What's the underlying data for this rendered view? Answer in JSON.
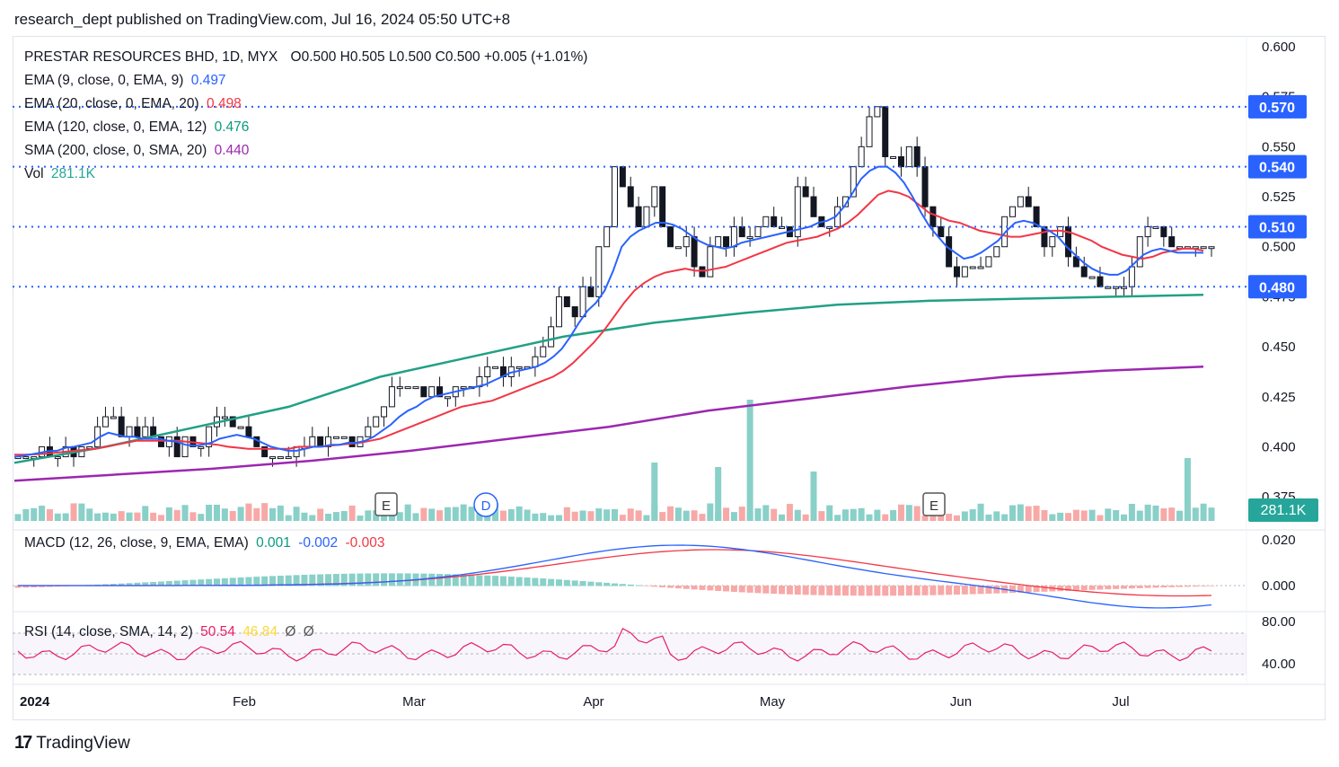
{
  "header": {
    "publisher_line": "research_dept published on TradingView.com, Jul 16, 2024 05:50 UTC+8"
  },
  "footer": {
    "brand": "TradingView"
  },
  "legend": {
    "title": "PRESTAR RESOURCES BHD, 1D, MYX",
    "ohlc": "O0.500  H0.505  L0.500  C0.500  +0.005 (+1.01%)",
    "ema9": {
      "label": "EMA (9, close, 0, EMA, 9)",
      "value": "0.497",
      "color": "#2962ff"
    },
    "ema20": {
      "label": "EMA (20, close, 0, EMA, 20)",
      "value": "0.498",
      "color": "#f23645"
    },
    "ema120": {
      "label": "EMA (120, close, 0, EMA, 12)",
      "value": "0.476",
      "color": "#089981"
    },
    "sma200": {
      "label": "SMA (200, close, 0, SMA, 20)",
      "value": "0.440",
      "color": "#9c27b0"
    },
    "vol": {
      "label": "Vol",
      "value": "281.1K",
      "color": "#26a69a"
    },
    "macd": {
      "label": "MACD (12, 26, close, 9, EMA, EMA)",
      "hist": "0.001",
      "macd": "-0.002",
      "signal": "-0.003"
    },
    "rsi": {
      "label": "RSI (14, close, SMA, 14, 2)",
      "rsi": "50.54",
      "sma": "46.84",
      "d1": "Ø",
      "d2": "Ø"
    }
  },
  "events": [
    {
      "label": "E",
      "date": "Feb 19"
    },
    {
      "label": "D",
      "date": "Mar 12"
    },
    {
      "label": "E",
      "date": "May 29"
    }
  ],
  "colors": {
    "up": "#ffffff",
    "down": "#131722",
    "vol_up": "#89d0c8",
    "vol_down": "#f7a9a7",
    "level": "#2962ff",
    "rsi": "#e91e63"
  },
  "chart_data": {
    "type": "candlestick",
    "symbol": "PRESTAR RESOURCES BHD",
    "price_axis": {
      "ticks": [
        "0.600",
        "0.575",
        "0.550",
        "0.525",
        "0.500",
        "0.475",
        "0.450",
        "0.425",
        "0.400",
        "0.375"
      ],
      "ylim": [
        0.37,
        0.605
      ]
    },
    "time_axis": {
      "ticks": [
        "2024",
        "Feb",
        "Mar",
        "Apr",
        "May",
        "Jun",
        "Jul"
      ]
    },
    "levels": [
      0.57,
      0.54,
      0.51,
      0.48
    ],
    "level_labels": [
      "0.570",
      "0.540",
      "0.510",
      "0.480"
    ],
    "volume_label": "281.1K",
    "macd_axis": {
      "ticks": [
        "0.020",
        "0.000"
      ]
    },
    "rsi_axis": {
      "ticks": [
        "80.00",
        "40.00"
      ]
    },
    "closes": [
      0.395,
      0.395,
      0.395,
      0.4,
      0.395,
      0.395,
      0.4,
      0.395,
      0.4,
      0.4,
      0.41,
      0.415,
      0.415,
      0.405,
      0.41,
      0.405,
      0.41,
      0.405,
      0.4,
      0.405,
      0.395,
      0.405,
      0.4,
      0.4,
      0.41,
      0.415,
      0.415,
      0.41,
      0.41,
      0.405,
      0.4,
      0.395,
      0.395,
      0.395,
      0.395,
      0.4,
      0.4,
      0.405,
      0.4,
      0.405,
      0.405,
      0.405,
      0.4,
      0.405,
      0.41,
      0.415,
      0.42,
      0.43,
      0.43,
      0.43,
      0.43,
      0.425,
      0.43,
      0.425,
      0.425,
      0.43,
      0.43,
      0.43,
      0.435,
      0.44,
      0.44,
      0.435,
      0.44,
      0.44,
      0.44,
      0.445,
      0.45,
      0.46,
      0.475,
      0.47,
      0.465,
      0.48,
      0.475,
      0.5,
      0.51,
      0.54,
      0.53,
      0.52,
      0.51,
      0.52,
      0.53,
      0.51,
      0.5,
      0.5,
      0.505,
      0.49,
      0.485,
      0.5,
      0.505,
      0.5,
      0.51,
      0.505,
      0.505,
      0.51,
      0.515,
      0.51,
      0.51,
      0.505,
      0.53,
      0.525,
      0.515,
      0.51,
      0.51,
      0.52,
      0.525,
      0.54,
      0.55,
      0.565,
      0.57,
      0.545,
      0.545,
      0.54,
      0.55,
      0.54,
      0.52,
      0.51,
      0.505,
      0.49,
      0.485,
      0.49,
      0.49,
      0.49,
      0.495,
      0.5,
      0.515,
      0.52,
      0.525,
      0.52,
      0.51,
      0.5,
      0.505,
      0.51,
      0.495,
      0.49,
      0.485,
      0.485,
      0.48,
      0.48,
      0.48,
      0.48,
      0.49,
      0.505,
      0.51,
      0.51,
      0.505,
      0.5,
      0.5,
      0.5,
      0.5,
      0.5,
      0.5
    ],
    "ema9": [
      0.395,
      0.3955,
      0.3962,
      0.397,
      0.3978,
      0.398,
      0.3995,
      0.4,
      0.401,
      0.402,
      0.405,
      0.407,
      0.406,
      0.405,
      0.405,
      0.404,
      0.404,
      0.404,
      0.403,
      0.4025,
      0.401,
      0.4005,
      0.401,
      0.402,
      0.404,
      0.405,
      0.406,
      0.405,
      0.404,
      0.402,
      0.4,
      0.399,
      0.398,
      0.398,
      0.399,
      0.4,
      0.4,
      0.401,
      0.401,
      0.402,
      0.402,
      0.403,
      0.405,
      0.408,
      0.411,
      0.415,
      0.418,
      0.42,
      0.423,
      0.425,
      0.426,
      0.427,
      0.428,
      0.429,
      0.43,
      0.431,
      0.433,
      0.435,
      0.437,
      0.438,
      0.439,
      0.44,
      0.442,
      0.445,
      0.449,
      0.455,
      0.462,
      0.468,
      0.472,
      0.478,
      0.488,
      0.5,
      0.505,
      0.508,
      0.51,
      0.512,
      0.512,
      0.511,
      0.509,
      0.506,
      0.503,
      0.501,
      0.5,
      0.499,
      0.5,
      0.502,
      0.503,
      0.504,
      0.505,
      0.506,
      0.507,
      0.508,
      0.509,
      0.51,
      0.512,
      0.513,
      0.515,
      0.52,
      0.527,
      0.534,
      0.538,
      0.54,
      0.54,
      0.537,
      0.532,
      0.525,
      0.517,
      0.51,
      0.505,
      0.5,
      0.497,
      0.494,
      0.495,
      0.497,
      0.5,
      0.503,
      0.508,
      0.512,
      0.513,
      0.512,
      0.51,
      0.508,
      0.505,
      0.5,
      0.496,
      0.492,
      0.489,
      0.487,
      0.486,
      0.486,
      0.488,
      0.492,
      0.496,
      0.498,
      0.499,
      0.498,
      0.497,
      0.497,
      0.497,
      0.497
    ],
    "ema20": [
      0.396,
      0.396,
      0.3962,
      0.3965,
      0.397,
      0.3975,
      0.398,
      0.3985,
      0.399,
      0.4,
      0.401,
      0.402,
      0.403,
      0.403,
      0.403,
      0.403,
      0.403,
      0.4025,
      0.402,
      0.4015,
      0.401,
      0.4,
      0.3995,
      0.399,
      0.399,
      0.399,
      0.399,
      0.399,
      0.4,
      0.4,
      0.4,
      0.4005,
      0.401,
      0.4015,
      0.402,
      0.403,
      0.404,
      0.406,
      0.408,
      0.41,
      0.412,
      0.414,
      0.416,
      0.418,
      0.42,
      0.421,
      0.422,
      0.423,
      0.425,
      0.427,
      0.429,
      0.431,
      0.433,
      0.435,
      0.438,
      0.442,
      0.447,
      0.452,
      0.458,
      0.465,
      0.472,
      0.478,
      0.482,
      0.485,
      0.487,
      0.488,
      0.489,
      0.488,
      0.488,
      0.489,
      0.49,
      0.492,
      0.494,
      0.496,
      0.498,
      0.5,
      0.502,
      0.503,
      0.504,
      0.505,
      0.507,
      0.509,
      0.512,
      0.516,
      0.521,
      0.526,
      0.528,
      0.527,
      0.525,
      0.521,
      0.517,
      0.515,
      0.513,
      0.512,
      0.51,
      0.508,
      0.507,
      0.506,
      0.505,
      0.505,
      0.506,
      0.507,
      0.508,
      0.508,
      0.507,
      0.505,
      0.503,
      0.5,
      0.498,
      0.496,
      0.495,
      0.494,
      0.495,
      0.497,
      0.498,
      0.499,
      0.499,
      0.498
    ],
    "ema120": [
      0.392,
      0.4,
      0.41,
      0.42,
      0.435,
      0.445,
      0.455,
      0.462,
      0.467,
      0.471,
      0.473,
      0.474,
      0.475,
      0.476
    ],
    "sma200": [
      0.383,
      0.386,
      0.389,
      0.393,
      0.398,
      0.404,
      0.41,
      0.418,
      0.424,
      0.43,
      0.435,
      0.438,
      0.44
    ]
  }
}
